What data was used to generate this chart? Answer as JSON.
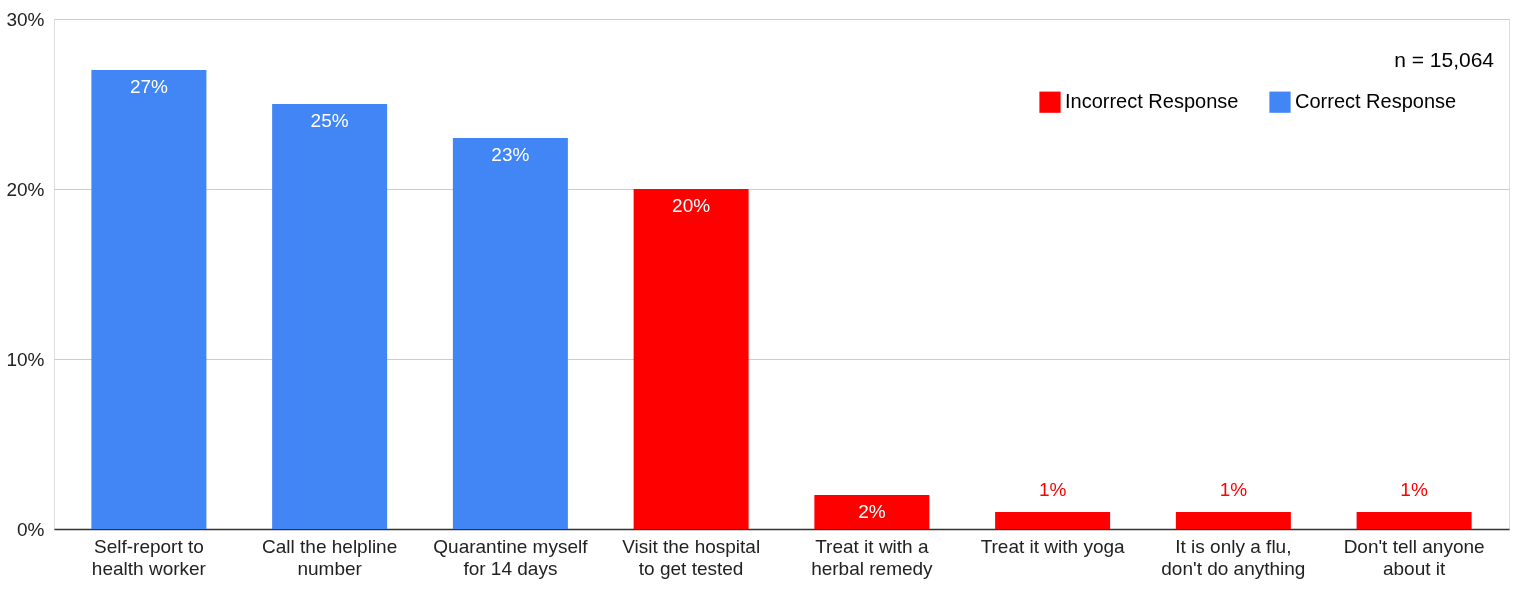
{
  "chart_data": {
    "type": "bar",
    "categories": [
      "Self-report to health worker",
      "Call the helpline number",
      "Quarantine myself for 14 days",
      "Visit the hospital to get tested",
      "Treat it with a herbal remedy",
      "Treat it with yoga",
      "It is only a flu, don't do anything",
      "Don't tell anyone about it"
    ],
    "series": [
      {
        "name": "Incorrect Response",
        "color": "#ff0000",
        "values": [
          null,
          null,
          null,
          20,
          2,
          1,
          1,
          1
        ],
        "value_labels": [
          null,
          null,
          null,
          "20%",
          "2%",
          "1%",
          "1%",
          "1%"
        ]
      },
      {
        "name": "Correct Response",
        "color": "#4285f4",
        "values": [
          27,
          25,
          23,
          null,
          null,
          null,
          null,
          null
        ],
        "value_labels": [
          "27%",
          "25%",
          "23%",
          null,
          null,
          null,
          null,
          null
        ]
      }
    ],
    "ylim": [
      0,
      30
    ],
    "yticks": [
      {
        "value": 0,
        "label": "0%"
      },
      {
        "value": 10,
        "label": "10%"
      },
      {
        "value": 20,
        "label": "20%"
      },
      {
        "value": 30,
        "label": "30%"
      }
    ],
    "grid": "y",
    "legend": "top right",
    "annotations": [
      "n = 15,064"
    ]
  }
}
